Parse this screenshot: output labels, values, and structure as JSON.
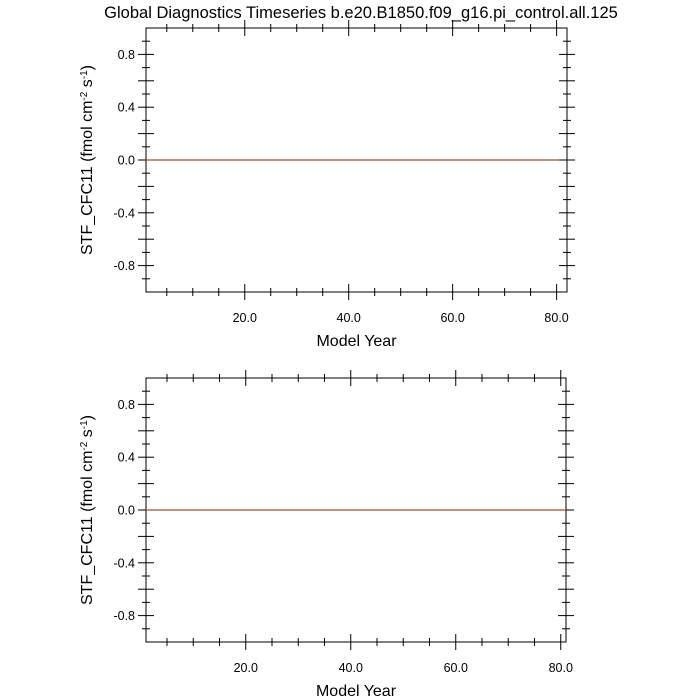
{
  "title": "Global Diagnostics Timeseries b.e20.B1850.f09_g16.pi_control.all.125",
  "colors": {
    "series": "#a0522d",
    "axis": "#000000"
  },
  "chart_data": [
    {
      "type": "line",
      "xlabel": "Model Year",
      "ylabel": {
        "base": "STF_CFC11 (fmol cm",
        "exp1": "-2",
        "mid": " s",
        "exp2": "-1",
        "end": ")"
      },
      "xlim": [
        1,
        82
      ],
      "ylim": [
        -1.0,
        1.0
      ],
      "xticks": [
        20,
        40,
        60,
        80
      ],
      "xtick_labels": [
        "20.0",
        "40.0",
        "60.0",
        "80.0"
      ],
      "yticks": [
        -0.8,
        -0.4,
        0.0,
        0.4,
        0.8
      ],
      "ytick_labels": [
        "-0.8",
        "-0.4",
        "0.0",
        "0.4",
        "0.8"
      ],
      "series": [
        {
          "x": [
            1,
            80.5
          ],
          "y": [
            0,
            0
          ]
        }
      ]
    },
    {
      "type": "line",
      "xlabel": "Model Year",
      "ylabel": {
        "base": "STF_CFC11 (fmol cm",
        "exp1": "-2",
        "mid": " s",
        "exp2": "-1",
        "end": ")"
      },
      "xlim": [
        1,
        81
      ],
      "ylim": [
        -1.0,
        1.0
      ],
      "xticks": [
        20,
        40,
        60,
        80
      ],
      "xtick_labels": [
        "20.0",
        "40.0",
        "60.0",
        "80.0"
      ],
      "yticks": [
        -0.8,
        -0.4,
        0.0,
        0.4,
        0.8
      ],
      "ytick_labels": [
        "-0.8",
        "-0.4",
        "0.0",
        "0.4",
        "0.8"
      ],
      "series": [
        {
          "x": [
            1,
            81
          ],
          "y": [
            0,
            0
          ]
        }
      ]
    }
  ]
}
